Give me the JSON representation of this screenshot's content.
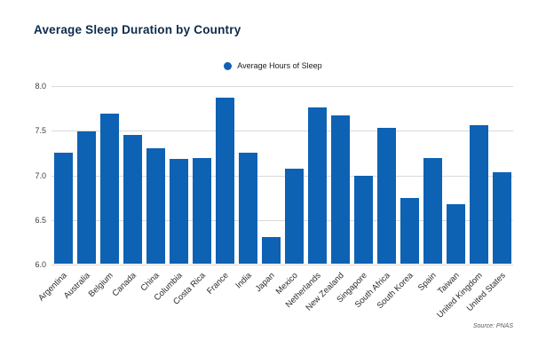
{
  "title": "Average Sleep Duration by Country",
  "legend": {
    "label": "Average Hours of Sleep"
  },
  "source": "Source: PNAS",
  "colors": {
    "bar": "#0e62b4",
    "title": "#0c2b4b",
    "grid": "#d9d9d9",
    "tick_text": "#3d3d3d"
  },
  "chart_data": {
    "type": "bar",
    "title": "Average Sleep Duration by Country",
    "xlabel": "",
    "ylabel": "",
    "ylim": [
      6.0,
      8.0
    ],
    "yticks": [
      6.0,
      6.5,
      7.0,
      7.5,
      8.0
    ],
    "grid": true,
    "legend_position": "top-center",
    "legend_entries": [
      "Average Hours of Sleep"
    ],
    "categories": [
      "Argentina",
      "Australia",
      "Belgium",
      "Canada",
      "China",
      "Columbia",
      "Costa Rica",
      "France",
      "India",
      "Japan",
      "Mexico",
      "Netherlands",
      "New Zealand",
      "Singapore",
      "South Africa",
      "South Korea",
      "Spain",
      "Taiwan",
      "United Kingdom",
      "United States"
    ],
    "values": [
      7.24,
      7.48,
      7.68,
      7.44,
      7.29,
      7.17,
      7.18,
      7.86,
      7.24,
      6.3,
      7.06,
      7.75,
      7.66,
      6.99,
      7.52,
      6.74,
      7.18,
      6.67,
      7.55,
      7.03
    ]
  }
}
